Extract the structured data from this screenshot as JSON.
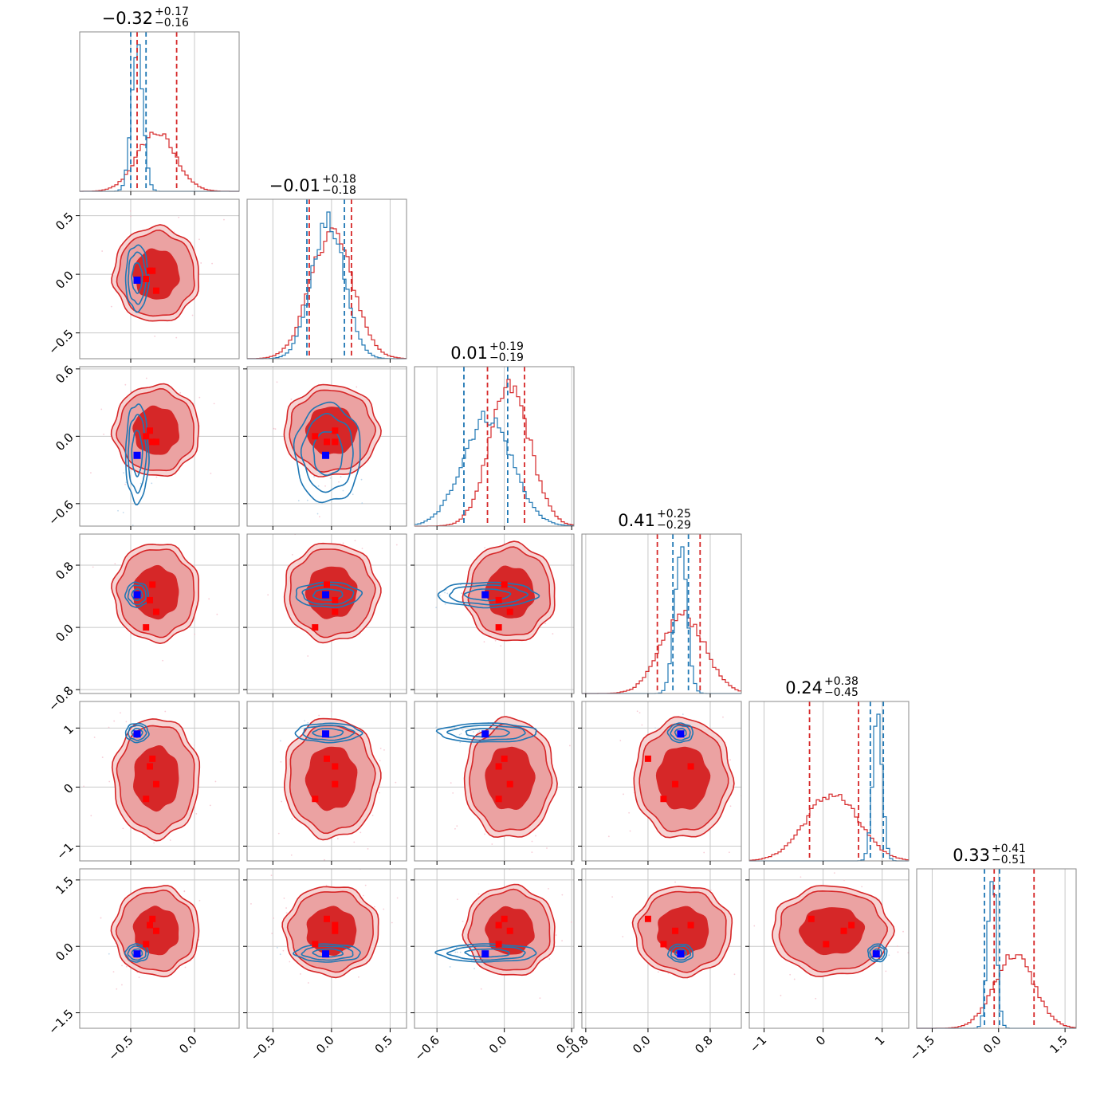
{
  "chart_data": {
    "type": "corner",
    "n_params": 6,
    "colors": {
      "red": "#d62728",
      "red_fill_light": "#eba2a2",
      "red_fill_dark": "#d62728",
      "blue": "#1f77b4",
      "marker_red": "#ff0000",
      "marker_blue": "#0000ff"
    },
    "grid": true,
    "params": [
      {
        "range": [
          -0.9,
          0.35
        ],
        "ticks": [
          -0.5,
          0.0
        ],
        "tick_labels": [
          "−0.5",
          "0.0"
        ],
        "title": {
          "main": "−0.32",
          "plus": "+0.17",
          "minus": "−0.16"
        },
        "red": {
          "center": -0.3,
          "sigma": 0.15,
          "quantiles": [
            -0.45,
            -0.14
          ]
        },
        "blue": {
          "center": -0.45,
          "sigma": 0.045,
          "quantiles": [
            -0.5,
            -0.38
          ]
        },
        "markers_red": [
          -0.35,
          -0.3,
          -0.38,
          -0.33
        ],
        "marker_blue": -0.45
      },
      {
        "range": [
          -0.72,
          0.64
        ],
        "ticks": [
          -0.5,
          0.0,
          0.5
        ],
        "tick_labels": [
          "−0.5",
          "0.0",
          "0.5"
        ],
        "title": {
          "main": "−0.01",
          "plus": "+0.18",
          "minus": "−0.18"
        },
        "red": {
          "center": 0.0,
          "sigma": 0.18,
          "quantiles": [
            -0.19,
            0.17
          ]
        },
        "blue": {
          "center": -0.03,
          "sigma": 0.14,
          "quantiles": [
            -0.21,
            0.11
          ]
        },
        "markers_red": [
          0.03,
          0.03,
          -0.14,
          -0.04
        ],
        "marker_blue": -0.05
      },
      {
        "range": [
          -0.8,
          0.62
        ],
        "ticks": [
          -0.6,
          0.0,
          0.6
        ],
        "tick_labels": [
          "−0.6",
          "0.0",
          "0.6"
        ],
        "title": {
          "main": "0.01",
          "plus": "+0.19",
          "minus": "−0.19"
        },
        "red": {
          "center": 0.05,
          "sigma": 0.18,
          "quantiles": [
            -0.15,
            0.18
          ]
        },
        "blue": {
          "center": -0.15,
          "sigma": 0.22,
          "quantiles": [
            -0.36,
            0.03
          ]
        },
        "markers_red": [
          -0.05,
          0.05,
          -0.05,
          0.0
        ],
        "marker_blue": -0.17
      },
      {
        "range": [
          -0.85,
          1.2
        ],
        "ticks": [
          -0.8,
          0.0,
          0.8
        ],
        "tick_labels": [
          "−0.8",
          "0.0",
          "0.8"
        ],
        "title": {
          "main": "0.41",
          "plus": "+0.25",
          "minus": "−0.29"
        },
        "red": {
          "center": 0.45,
          "sigma": 0.28,
          "quantiles": [
            0.12,
            0.67
          ]
        },
        "blue": {
          "center": 0.42,
          "sigma": 0.08,
          "quantiles": [
            0.32,
            0.52
          ]
        },
        "markers_red": [
          0.55,
          0.35,
          0.2,
          0.0
        ],
        "marker_blue": 0.42
      },
      {
        "range": [
          -1.25,
          1.45
        ],
        "ticks": [
          -1,
          0,
          1
        ],
        "tick_labels": [
          "−1",
          "0",
          "1"
        ],
        "title": {
          "main": "0.24",
          "plus": "+0.38",
          "minus": "−0.45"
        },
        "red": {
          "center": 0.15,
          "sigma": 0.45,
          "quantiles": [
            -0.23,
            0.6
          ]
        },
        "blue": {
          "center": 0.92,
          "sigma": 0.08,
          "quantiles": [
            0.8,
            1.02
          ]
        },
        "markers_red": [
          0.48,
          0.35,
          0.05,
          -0.2
        ],
        "marker_blue": 0.9
      },
      {
        "range": [
          -1.85,
          1.75
        ],
        "ticks": [
          -1.5,
          0.0,
          1.5
        ],
        "tick_labels": [
          "−1.5",
          "0.0",
          "1.5"
        ],
        "title": {
          "main": "0.33",
          "plus": "+0.41",
          "minus": "−0.51"
        },
        "red": {
          "center": 0.35,
          "sigma": 0.45,
          "quantiles": [
            -0.1,
            0.8
          ]
        },
        "blue": {
          "center": -0.15,
          "sigma": 0.1,
          "quantiles": [
            -0.32,
            0.02
          ]
        },
        "markers_red": [
          0.62,
          0.48,
          0.35,
          0.05
        ],
        "marker_blue": -0.17
      }
    ]
  }
}
